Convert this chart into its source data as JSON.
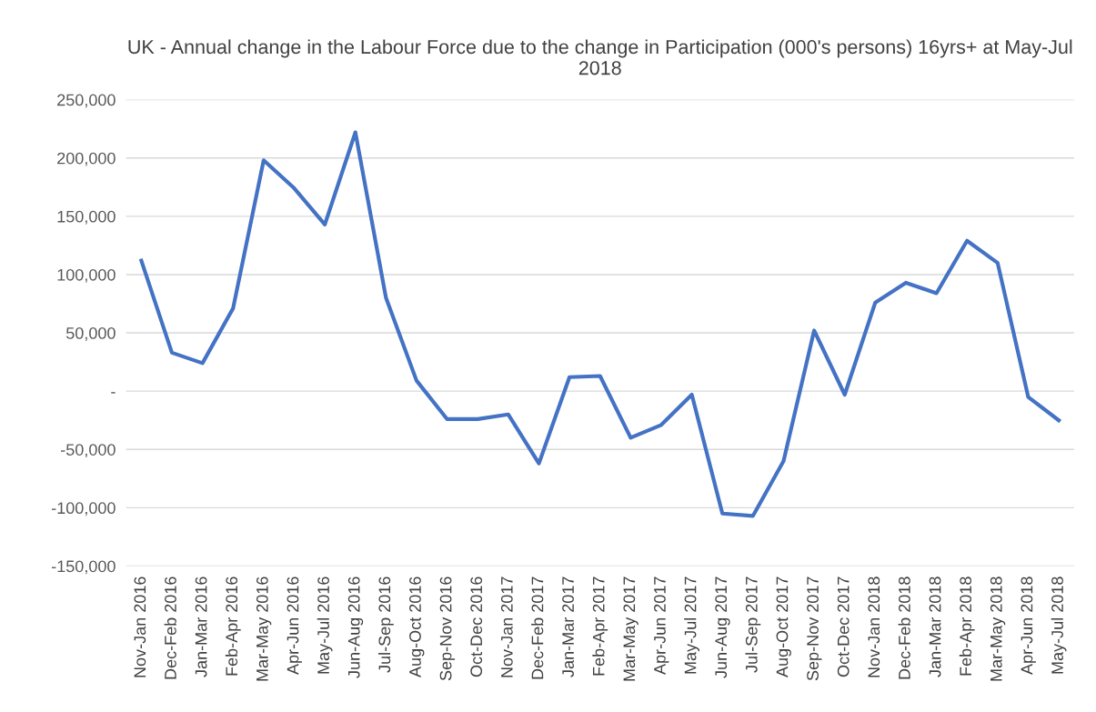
{
  "chart_data": {
    "type": "line",
    "title": "UK - Annual change in the Labour Force due to the change in Participation (000's persons) 16yrs+ at May-Jul 2018",
    "categories": [
      "Nov-Jan 2016",
      "Dec-Feb 2016",
      "Jan-Mar 2016",
      "Feb-Apr 2016",
      "Mar-May 2016",
      "Apr-Jun 2016",
      "May-Jul 2016",
      "Jun-Aug 2016",
      "Jul-Sep 2016",
      "Aug-Oct 2016",
      "Sep-Nov 2016",
      "Oct-Dec 2016",
      "Nov-Jan 2017",
      "Dec-Feb 2017",
      "Jan-Mar 2017",
      "Feb-Apr 2017",
      "Mar-May 2017",
      "Apr-Jun 2017",
      "May-Jul 2017",
      "Jun-Aug 2017",
      "Jul-Sep 2017",
      "Aug-Oct 2017",
      "Sep-Nov 2017",
      "Oct-Dec 2017",
      "Nov-Jan 2018",
      "Dec-Feb 2018",
      "Jan-Mar 2018",
      "Feb-Apr 2018",
      "Mar-May 2018",
      "Apr-Jun 2018",
      "May-Jul 2018"
    ],
    "series": [
      {
        "color": "#4472c4",
        "values": [
          112000,
          33000,
          24000,
          71000,
          198000,
          174000,
          143000,
          222000,
          80000,
          9000,
          -24000,
          -24000,
          -20000,
          -62000,
          12000,
          13000,
          -40000,
          -29000,
          -3000,
          -105000,
          -107000,
          -60000,
          52000,
          -3000,
          76000,
          93000,
          84000,
          129000,
          110000,
          -5000,
          -25000
        ]
      }
    ],
    "ylim": [
      -150000,
      250000
    ],
    "yticks": [
      {
        "value": -150000,
        "label": "-150,000"
      },
      {
        "value": -100000,
        "label": "-100,000"
      },
      {
        "value": -50000,
        "label": "-50,000"
      },
      {
        "value": 0,
        "label": "-"
      },
      {
        "value": 50000,
        "label": "50,000"
      },
      {
        "value": 100000,
        "label": "100,000"
      },
      {
        "value": 150000,
        "label": "150,000"
      },
      {
        "value": 200000,
        "label": "200,000"
      },
      {
        "value": 250000,
        "label": "250,000"
      }
    ],
    "grid": "y",
    "marker": "none",
    "line_style": "solid"
  }
}
